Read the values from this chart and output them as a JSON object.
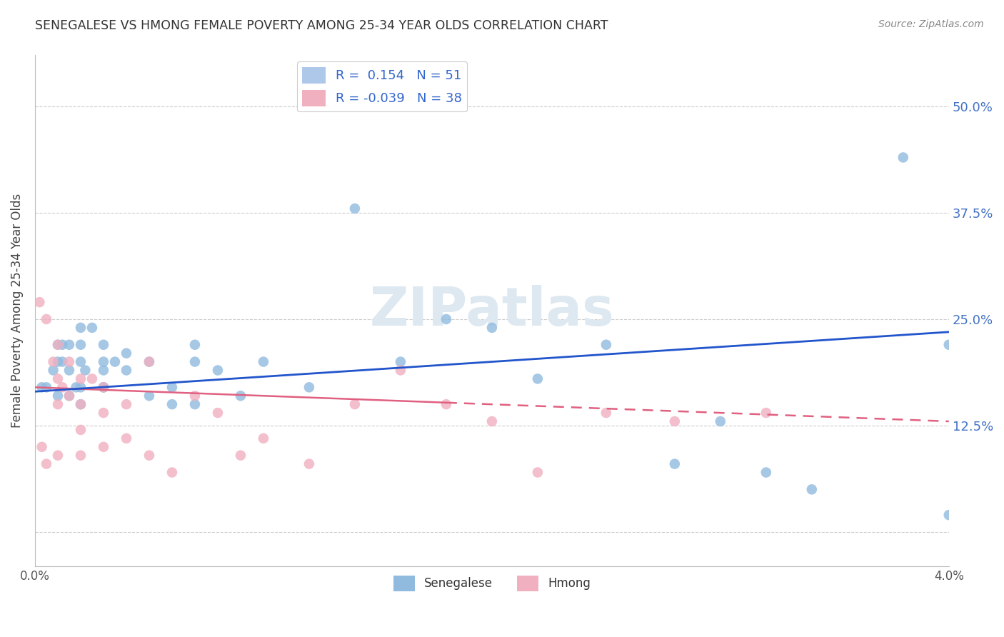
{
  "title": "SENEGALESE VS HMONG FEMALE POVERTY AMONG 25-34 YEAR OLDS CORRELATION CHART",
  "source": "Source: ZipAtlas.com",
  "ylabel": "Female Poverty Among 25-34 Year Olds",
  "xlim": [
    0.0,
    0.04
  ],
  "ylim": [
    -0.04,
    0.56
  ],
  "yticks": [
    0.0,
    0.125,
    0.25,
    0.375,
    0.5
  ],
  "right_ytick_labels": [
    "",
    "12.5%",
    "25.0%",
    "37.5%",
    "50.0%"
  ],
  "xticks": [
    0.0,
    0.01,
    0.02,
    0.03,
    0.04
  ],
  "xtick_labels": [
    "0.0%",
    "",
    "",
    "",
    "4.0%"
  ],
  "legend_items": [
    {
      "label": "R =  0.154   N = 51",
      "color": "#adc8e8"
    },
    {
      "label": "R = -0.039   N = 38",
      "color": "#f0b0c0"
    }
  ],
  "senegalese_color": "#90bbdf",
  "hmong_color": "#f0b0c0",
  "trend_senegalese_color": "#2255cc",
  "trend_hmong_color": "#e06080",
  "watermark": "ZIPatlas",
  "watermark_color": "#dde8f0",
  "senegalese_x": [
    0.0003,
    0.0005,
    0.0008,
    0.001,
    0.001,
    0.001,
    0.0012,
    0.0012,
    0.0015,
    0.0015,
    0.0015,
    0.0018,
    0.002,
    0.002,
    0.002,
    0.002,
    0.002,
    0.0022,
    0.0025,
    0.003,
    0.003,
    0.003,
    0.003,
    0.003,
    0.0035,
    0.004,
    0.004,
    0.005,
    0.005,
    0.006,
    0.006,
    0.007,
    0.007,
    0.007,
    0.008,
    0.009,
    0.01,
    0.012,
    0.014,
    0.016,
    0.018,
    0.02,
    0.022,
    0.025,
    0.028,
    0.03,
    0.032,
    0.034,
    0.038,
    0.04,
    0.04
  ],
  "senegalese_y": [
    0.17,
    0.17,
    0.19,
    0.16,
    0.2,
    0.22,
    0.2,
    0.22,
    0.16,
    0.19,
    0.22,
    0.17,
    0.15,
    0.17,
    0.2,
    0.22,
    0.24,
    0.19,
    0.24,
    0.17,
    0.19,
    0.2,
    0.22,
    0.17,
    0.2,
    0.19,
    0.21,
    0.16,
    0.2,
    0.17,
    0.15,
    0.2,
    0.22,
    0.15,
    0.19,
    0.16,
    0.2,
    0.17,
    0.38,
    0.2,
    0.25,
    0.24,
    0.18,
    0.22,
    0.08,
    0.13,
    0.07,
    0.05,
    0.44,
    0.22,
    0.02
  ],
  "hmong_x": [
    0.0002,
    0.0003,
    0.0005,
    0.0005,
    0.0008,
    0.001,
    0.001,
    0.001,
    0.001,
    0.0012,
    0.0015,
    0.0015,
    0.002,
    0.002,
    0.002,
    0.002,
    0.0025,
    0.003,
    0.003,
    0.003,
    0.004,
    0.004,
    0.005,
    0.005,
    0.006,
    0.007,
    0.008,
    0.009,
    0.01,
    0.012,
    0.014,
    0.016,
    0.018,
    0.02,
    0.022,
    0.025,
    0.028,
    0.032
  ],
  "hmong_y": [
    0.27,
    0.1,
    0.25,
    0.08,
    0.2,
    0.22,
    0.18,
    0.15,
    0.09,
    0.17,
    0.2,
    0.16,
    0.18,
    0.15,
    0.12,
    0.09,
    0.18,
    0.17,
    0.14,
    0.1,
    0.15,
    0.11,
    0.2,
    0.09,
    0.07,
    0.16,
    0.14,
    0.09,
    0.11,
    0.08,
    0.15,
    0.19,
    0.15,
    0.13,
    0.07,
    0.14,
    0.13,
    0.14
  ],
  "trend_sen_x0": 0.0,
  "trend_sen_y0": 0.165,
  "trend_sen_x1": 0.04,
  "trend_sen_y1": 0.235,
  "trend_hmong_x0": 0.0,
  "trend_hmong_y0": 0.17,
  "trend_hmong_x1": 0.04,
  "trend_hmong_y1": 0.13
}
